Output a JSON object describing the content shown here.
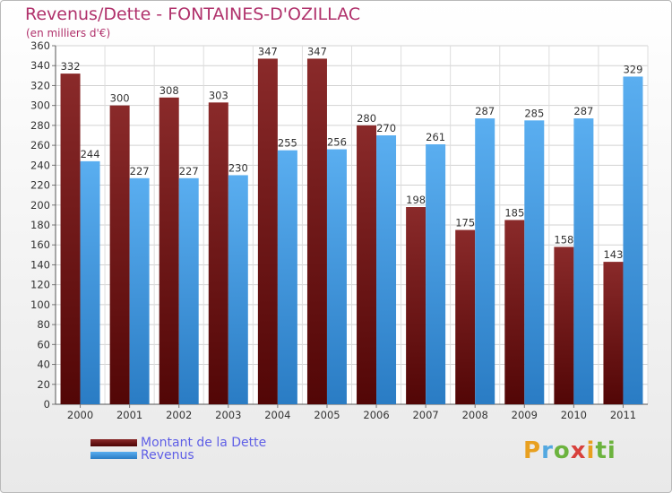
{
  "title": "Revenus/Dette - FONTAINES-D'OZILLAC",
  "subtitle": "(en milliers d'€)",
  "colors": {
    "dette": "#7a1c1c",
    "revenus": "#2f8fd8"
  },
  "legend": [
    {
      "label": "Montant de la Dette",
      "color": "#6b1414"
    },
    {
      "label": "Revenus",
      "color": "#3d9be0"
    }
  ],
  "logo": {
    "letters": [
      "P",
      "r",
      "o",
      "x",
      "i",
      "ti"
    ]
  },
  "chart_data": {
    "type": "bar",
    "categories": [
      "2000",
      "2001",
      "2002",
      "2003",
      "2004",
      "2005",
      "2006",
      "2007",
      "2008",
      "2009",
      "2010",
      "2011"
    ],
    "series": [
      {
        "name": "Montant de la Dette",
        "values": [
          332,
          300,
          308,
          303,
          347,
          347,
          280,
          198,
          175,
          185,
          158,
          143
        ]
      },
      {
        "name": "Revenus",
        "values": [
          244,
          227,
          227,
          230,
          255,
          256,
          270,
          261,
          287,
          285,
          287,
          329
        ]
      }
    ],
    "ylim": [
      0,
      360
    ],
    "yticks": [
      0,
      20,
      40,
      60,
      80,
      100,
      120,
      140,
      160,
      180,
      200,
      220,
      240,
      260,
      280,
      300,
      320,
      340,
      360
    ],
    "grid": true,
    "legend_position": "bottom-left"
  }
}
